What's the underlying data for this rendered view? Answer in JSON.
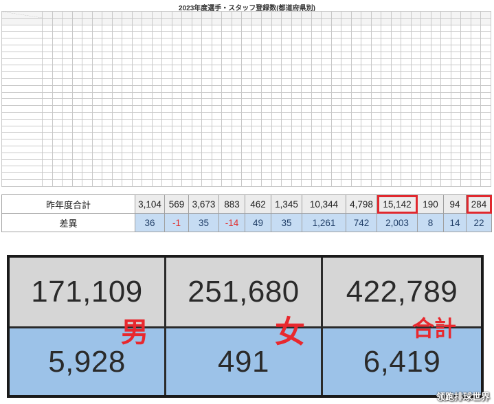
{
  "title": "2023年度選手・スタッフ登録数(都道府県別)",
  "summary": {
    "prev_label": "昨年度合計",
    "diff_label": "差異",
    "prev_values": [
      "3,104",
      "569",
      "3,673",
      "883",
      "462",
      "1,345",
      "10,344",
      "4,798",
      "15,142",
      "190",
      "94",
      "284"
    ],
    "diff_values": [
      "36",
      "-1",
      "35",
      "-14",
      "49",
      "35",
      "1,261",
      "742",
      "2,003",
      "8",
      "14",
      "22"
    ],
    "highlighted": [
      "15,142",
      "284"
    ],
    "highlight_color": "#e0282e",
    "negative_color": "#e03030"
  },
  "big_panel": {
    "top": [
      "171,109",
      "251,680",
      "422,789"
    ],
    "labels": [
      "男",
      "女",
      "合計"
    ],
    "bottom": [
      "5,928",
      "491",
      "6,419"
    ],
    "label_color": "#e8282e"
  },
  "watermark": "领跑排球世界",
  "colors": {
    "row_gray": "#d6d6d6",
    "row_blue": "#9cc2e8"
  }
}
